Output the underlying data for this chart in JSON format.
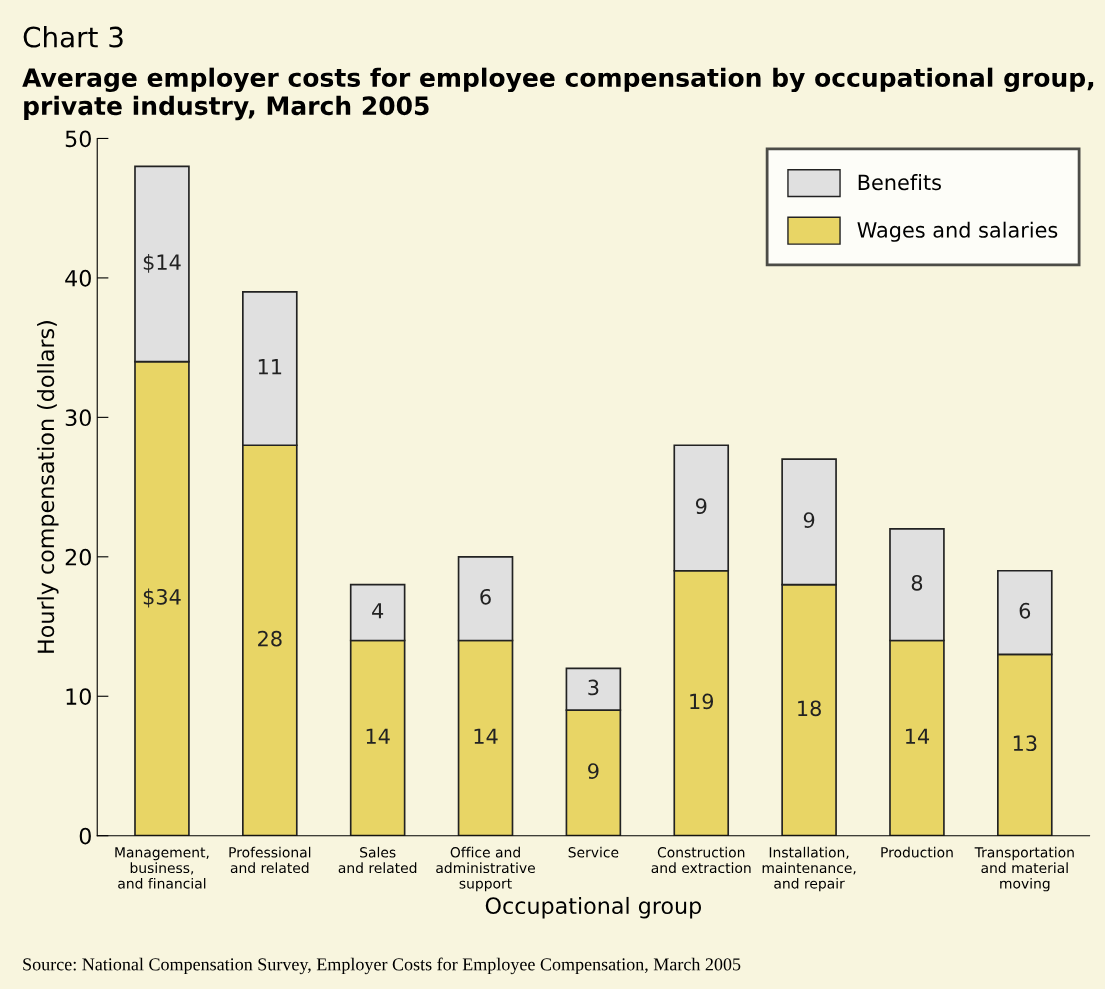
{
  "chart_data": {
    "type": "bar",
    "stacked": true,
    "title": "Chart 3",
    "subtitle": "Average employer costs for employee compensation by occupational group, private industry, March 2005",
    "xlabel": "Occupational group",
    "ylabel": "Hourly compensation (dollars)",
    "categories": [
      "Management,\nbusiness,\nand financial",
      "Professional\nand related",
      "Sales\nand related",
      "Office and\nadministrative\nsupport",
      "Service",
      "Construction\nand extraction",
      "Installation,\nmaintenance,\nand repair",
      "Production",
      "Transportation\nand material\nmoving"
    ],
    "series": [
      {
        "name": "Wages and salaries",
        "color": "#e8d565",
        "values": [
          34,
          28,
          14,
          14,
          9,
          19,
          18,
          14,
          13
        ],
        "value_labels": [
          "$34",
          "28",
          "14",
          "14",
          "9",
          "19",
          "18",
          "14",
          "13"
        ]
      },
      {
        "name": "Benefits",
        "color": "#e0e0e0",
        "values": [
          14,
          11,
          4,
          6,
          3,
          9,
          9,
          8,
          6
        ],
        "value_labels": [
          "$14",
          "11",
          "4",
          "6",
          "3",
          "9",
          "9",
          "8",
          "6"
        ]
      }
    ],
    "ylim": [
      0,
      50
    ],
    "yticks": [
      0,
      10,
      20,
      30,
      40,
      50
    ],
    "grid": false,
    "legend": "top right",
    "annotations": [
      "Source: National Compensation Survey, Employer Costs for Employee Compensation, March 2005"
    ]
  }
}
